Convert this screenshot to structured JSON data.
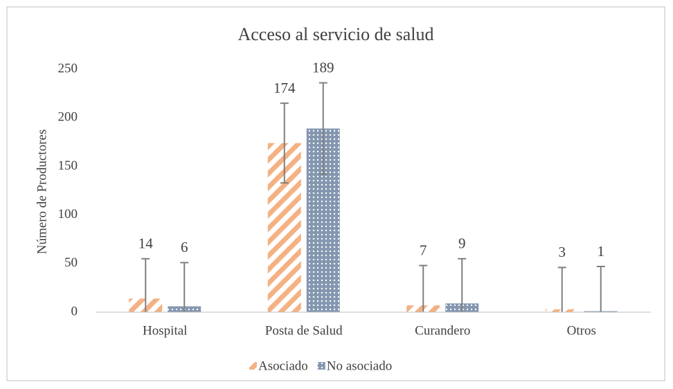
{
  "chart_data": {
    "type": "bar",
    "title": "Acceso al servicio de salud",
    "ylabel": "Número de Productores",
    "categories": [
      "Hospital",
      "Posta de Salud",
      "Curandero",
      "Otros"
    ],
    "series": [
      {
        "name": "Asociado",
        "color": "#f4b183",
        "values": [
          14,
          174,
          7,
          3
        ],
        "errors": [
          41,
          41,
          41,
          43
        ]
      },
      {
        "name": "No asociado",
        "color": "#8497b0",
        "values": [
          6,
          189,
          9,
          1
        ],
        "errors": [
          45,
          47,
          46,
          46
        ]
      }
    ],
    "ylim": [
      0,
      250
    ],
    "yticks": [
      0,
      50,
      100,
      150,
      200,
      250
    ],
    "grid": false,
    "legend": "bottom"
  }
}
